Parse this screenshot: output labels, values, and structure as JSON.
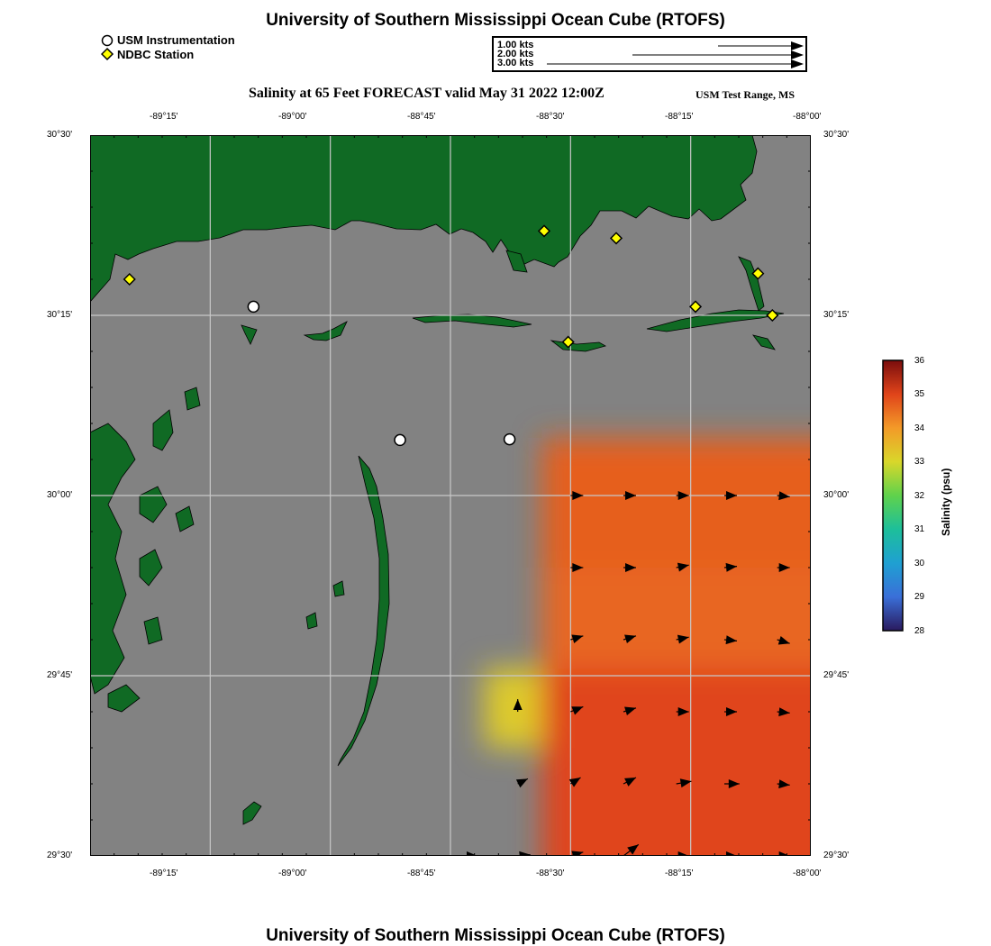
{
  "header": {
    "title": "University of Southern Mississippi Ocean Cube (RTOFS)"
  },
  "legend": {
    "usm": "USM Instrumentation",
    "ndbc": "NDBC Station"
  },
  "vector_scale": [
    {
      "label": "1.00 kts",
      "value": 1.0
    },
    {
      "label": "2.00 kts",
      "value": 2.0
    },
    {
      "label": "3.00 kts",
      "value": 3.0
    }
  ],
  "map": {
    "subtitle": "Salinity at 65 Feet FORECAST valid May 31 2022 12:00Z",
    "region": "USM Test Range, MS",
    "x_ticks": [
      "-89°15'",
      "-89°00'",
      "-88°45'",
      "-88°30'",
      "-88°15'",
      "-88°00'"
    ],
    "y_ticks": [
      "30°30'",
      "30°15'",
      "30°00'",
      "29°45'",
      "29°30'"
    ],
    "lon_range": [
      -89.5,
      -88.0
    ],
    "lat_range": [
      29.5,
      30.5
    ],
    "colors": {
      "land": "#106a24",
      "nodata": "#828282",
      "grid": "#c8c8c8"
    }
  },
  "usm_stations": [
    {
      "lon": -89.16,
      "lat": 30.262
    },
    {
      "lon": -88.855,
      "lat": 30.077
    },
    {
      "lon": -88.627,
      "lat": 30.078
    }
  ],
  "ndbc_stations": [
    {
      "lon": -89.418,
      "lat": 30.3
    },
    {
      "lon": -88.555,
      "lat": 30.367
    },
    {
      "lon": -88.405,
      "lat": 30.357
    },
    {
      "lon": -88.24,
      "lat": 30.262
    },
    {
      "lon": -88.11,
      "lat": 30.308
    },
    {
      "lon": -88.08,
      "lat": 30.25
    },
    {
      "lon": -88.505,
      "lat": 30.213
    }
  ],
  "colorbar": {
    "title": "Salinity (psu)",
    "min": 28,
    "max": 36,
    "ticks": [
      "36",
      "35",
      "34",
      "33",
      "32",
      "31",
      "30",
      "29",
      "28"
    ]
  },
  "salinity_field": [
    {
      "lon_min": -88.56,
      "lon_max": -88.0,
      "lat_min": 29.9,
      "lat_max": 30.08,
      "psu": 34.7
    },
    {
      "lon_min": -88.56,
      "lon_max": -88.0,
      "lat_min": 29.76,
      "lat_max": 29.9,
      "psu": 34.6
    },
    {
      "lon_min": -88.68,
      "lon_max": -88.56,
      "lat_min": 29.65,
      "lat_max": 29.76,
      "psu": 33.2
    },
    {
      "lon_min": -88.56,
      "lon_max": -88.0,
      "lat_min": 29.5,
      "lat_max": 29.76,
      "psu": 35.0
    }
  ],
  "current_vectors": [
    {
      "lon": -88.5,
      "lat": 30.0,
      "u": 1.0,
      "v": 0.0
    },
    {
      "lon": -88.39,
      "lat": 30.0,
      "u": 1.0,
      "v": 0.0
    },
    {
      "lon": -88.28,
      "lat": 30.0,
      "u": 1.0,
      "v": 0.0
    },
    {
      "lon": -88.18,
      "lat": 30.0,
      "u": 1.0,
      "v": 0.0
    },
    {
      "lon": -88.07,
      "lat": 30.0,
      "u": 1.0,
      "v": -0.1
    },
    {
      "lon": -88.5,
      "lat": 29.9,
      "u": 1.0,
      "v": 0.0
    },
    {
      "lon": -88.39,
      "lat": 29.9,
      "u": 1.0,
      "v": 0.0
    },
    {
      "lon": -88.28,
      "lat": 29.9,
      "u": 1.0,
      "v": 0.2
    },
    {
      "lon": -88.18,
      "lat": 29.9,
      "u": 1.0,
      "v": 0.1
    },
    {
      "lon": -88.07,
      "lat": 29.9,
      "u": 1.0,
      "v": 0.0
    },
    {
      "lon": -88.5,
      "lat": 29.8,
      "u": 1.0,
      "v": 0.3
    },
    {
      "lon": -88.39,
      "lat": 29.8,
      "u": 1.0,
      "v": 0.3
    },
    {
      "lon": -88.28,
      "lat": 29.8,
      "u": 1.0,
      "v": 0.2
    },
    {
      "lon": -88.18,
      "lat": 29.8,
      "u": 1.0,
      "v": -0.1
    },
    {
      "lon": -88.07,
      "lat": 29.8,
      "u": 1.0,
      "v": -0.3
    },
    {
      "lon": -88.61,
      "lat": 29.7,
      "u": 0.0,
      "v": 1.0
    },
    {
      "lon": -88.5,
      "lat": 29.7,
      "u": 1.0,
      "v": 0.4
    },
    {
      "lon": -88.39,
      "lat": 29.7,
      "u": 1.0,
      "v": 0.3
    },
    {
      "lon": -88.28,
      "lat": 29.7,
      "u": 1.0,
      "v": 0.0
    },
    {
      "lon": -88.18,
      "lat": 29.7,
      "u": 1.0,
      "v": 0.0
    },
    {
      "lon": -88.07,
      "lat": 29.7,
      "u": 1.0,
      "v": -0.1
    },
    {
      "lon": -88.61,
      "lat": 29.6,
      "u": 0.8,
      "v": 0.4
    },
    {
      "lon": -88.5,
      "lat": 29.6,
      "u": 0.8,
      "v": 0.5
    },
    {
      "lon": -88.39,
      "lat": 29.6,
      "u": 1.0,
      "v": 0.5
    },
    {
      "lon": -88.28,
      "lat": 29.6,
      "u": 1.2,
      "v": 0.2
    },
    {
      "lon": -88.18,
      "lat": 29.6,
      "u": 1.2,
      "v": 0.0
    },
    {
      "lon": -88.07,
      "lat": 29.6,
      "u": 1.0,
      "v": -0.1
    },
    {
      "lon": -88.72,
      "lat": 29.5,
      "u": 1.0,
      "v": 0.0
    },
    {
      "lon": -88.61,
      "lat": 29.5,
      "u": 1.0,
      "v": 0.1
    },
    {
      "lon": -88.5,
      "lat": 29.5,
      "u": 1.0,
      "v": 0.3
    },
    {
      "lon": -88.39,
      "lat": 29.5,
      "u": 1.2,
      "v": 0.9
    },
    {
      "lon": -88.28,
      "lat": 29.5,
      "u": 1.0,
      "v": 0.0
    },
    {
      "lon": -88.18,
      "lat": 29.5,
      "u": 1.0,
      "v": 0.0
    },
    {
      "lon": -88.07,
      "lat": 29.5,
      "u": 1.0,
      "v": 0.0
    }
  ],
  "footer": {
    "title": "University of Southern Mississippi Ocean Cube (RTOFS)"
  }
}
